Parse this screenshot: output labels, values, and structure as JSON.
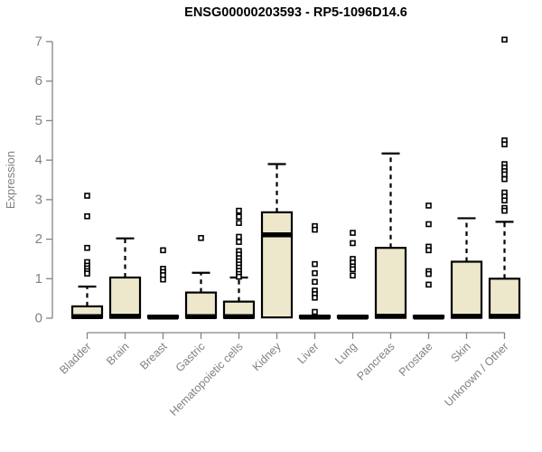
{
  "chart_data": {
    "type": "boxplot",
    "title": "ENSG00000203593 - RP5-1096D14.6",
    "ylabel": "Expression",
    "xlabel": "",
    "ylim": [
      0,
      7
    ],
    "yticks": [
      0,
      1,
      2,
      3,
      4,
      5,
      6,
      7
    ],
    "grid": false,
    "legend": "none",
    "categories": [
      "Bladder",
      "Brain",
      "Breast",
      "Gastric",
      "Hematopoietic cells",
      "Kidney",
      "Liver",
      "Lung",
      "Pancreas",
      "Prostate",
      "Skin",
      "Unknown / Other"
    ],
    "series": [
      {
        "category": "Bladder",
        "whisker_low": 0,
        "q1": 0.01,
        "median": 0.04,
        "q3": 0.3,
        "whisker_high": 0.8,
        "outliers": [
          3.1,
          2.58,
          1.78,
          1.42,
          1.33,
          1.26,
          1.19,
          1.13
        ]
      },
      {
        "category": "Brain",
        "whisker_low": 0,
        "q1": 0.01,
        "median": 0.05,
        "q3": 1.03,
        "whisker_high": 2.02,
        "outliers": []
      },
      {
        "category": "Breast",
        "whisker_low": 0,
        "q1": 0.01,
        "median": 0.03,
        "q3": 0.06,
        "whisker_high": 0.06,
        "outliers": [
          1.72,
          1.25,
          1.17,
          1.09,
          0.98
        ]
      },
      {
        "category": "Gastric",
        "whisker_low": 0,
        "q1": 0.01,
        "median": 0.04,
        "q3": 0.65,
        "whisker_high": 1.15,
        "outliers": [
          2.03
        ]
      },
      {
        "category": "Hematopoietic cells",
        "whisker_low": 0,
        "q1": 0.01,
        "median": 0.04,
        "q3": 0.42,
        "whisker_high": 1.03,
        "outliers": [
          2.72,
          2.57,
          2.41,
          2.06,
          1.93,
          1.7,
          1.61,
          1.52,
          1.44,
          1.36,
          1.28,
          1.2,
          1.12,
          1.05
        ]
      },
      {
        "category": "Kidney",
        "whisker_low": 0.02,
        "q1": 0.02,
        "median": 2.11,
        "q3": 2.68,
        "whisker_high": 3.9,
        "outliers": []
      },
      {
        "category": "Liver",
        "whisker_low": 0,
        "q1": 0.01,
        "median": 0.03,
        "q3": 0.06,
        "whisker_high": 0.06,
        "outliers": [
          2.33,
          2.24,
          1.37,
          1.14,
          0.92,
          0.7,
          0.61,
          0.52,
          0.16
        ]
      },
      {
        "category": "Lung",
        "whisker_low": 0,
        "q1": 0.01,
        "median": 0.03,
        "q3": 0.06,
        "whisker_high": 0.06,
        "outliers": [
          2.16,
          1.9,
          1.5,
          1.41,
          1.31,
          1.24,
          1.08
        ]
      },
      {
        "category": "Pancreas",
        "whisker_low": 0,
        "q1": 0.01,
        "median": 0.05,
        "q3": 1.78,
        "whisker_high": 4.17,
        "outliers": []
      },
      {
        "category": "Prostate",
        "whisker_low": 0,
        "q1": 0.01,
        "median": 0.03,
        "q3": 0.06,
        "whisker_high": 0.06,
        "outliers": [
          2.85,
          2.38,
          1.81,
          1.72,
          1.19,
          1.12,
          0.85
        ]
      },
      {
        "category": "Skin",
        "whisker_low": 0,
        "q1": 0.01,
        "median": 0.05,
        "q3": 1.43,
        "whisker_high": 2.53,
        "outliers": []
      },
      {
        "category": "Unknown / Other",
        "whisker_low": 0,
        "q1": 0.01,
        "median": 0.05,
        "q3": 1.0,
        "whisker_high": 2.44,
        "outliers": [
          7.05,
          4.5,
          4.4,
          3.9,
          3.81,
          3.72,
          3.64,
          3.52,
          3.18,
          3.08,
          2.98,
          2.79,
          2.72
        ]
      }
    ],
    "style": {
      "box_fill": "#ede8cc",
      "box_stroke": "#000000",
      "median_color": "#000000",
      "whisker_color": "#000000",
      "outlier_color": "#000000",
      "axis_color": "#848484",
      "label_color": "#818181",
      "title_color": "#000000",
      "background": "#ffffff"
    }
  }
}
